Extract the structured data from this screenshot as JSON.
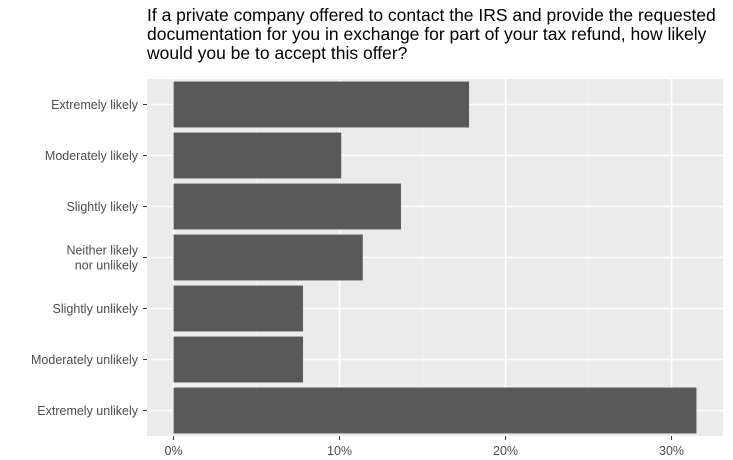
{
  "chart_data": {
    "type": "bar",
    "orientation": "horizontal",
    "title": "If a private company offered to contact the IRS and provide the requested documentation for you in exchange for part of your tax refund, how likely would you be to accept this offer?",
    "xlabel": "",
    "ylabel": "",
    "categories": [
      "Extremely likely",
      "Moderately likely",
      "Slightly likely",
      "Neither likely\nnor unlikely",
      "Slightly unlikely",
      "Moderately unlikely",
      "Extremely unlikely"
    ],
    "values": [
      17.8,
      10.1,
      13.7,
      11.4,
      7.8,
      7.8,
      31.5
    ],
    "value_unit": "%",
    "xlim": [
      -1.6,
      33.1
    ],
    "xticks": [
      0,
      10,
      20,
      30
    ],
    "xtick_labels": [
      "0%",
      "10%",
      "20%",
      "30%"
    ],
    "grid": true,
    "colors": {
      "bar": "#595959",
      "panel": "#ebebeb",
      "grid_major": "#ffffff",
      "grid_minor": "#f2f2f2",
      "tick_text": "#4d4d4d",
      "tick_mark": "#333333"
    }
  }
}
